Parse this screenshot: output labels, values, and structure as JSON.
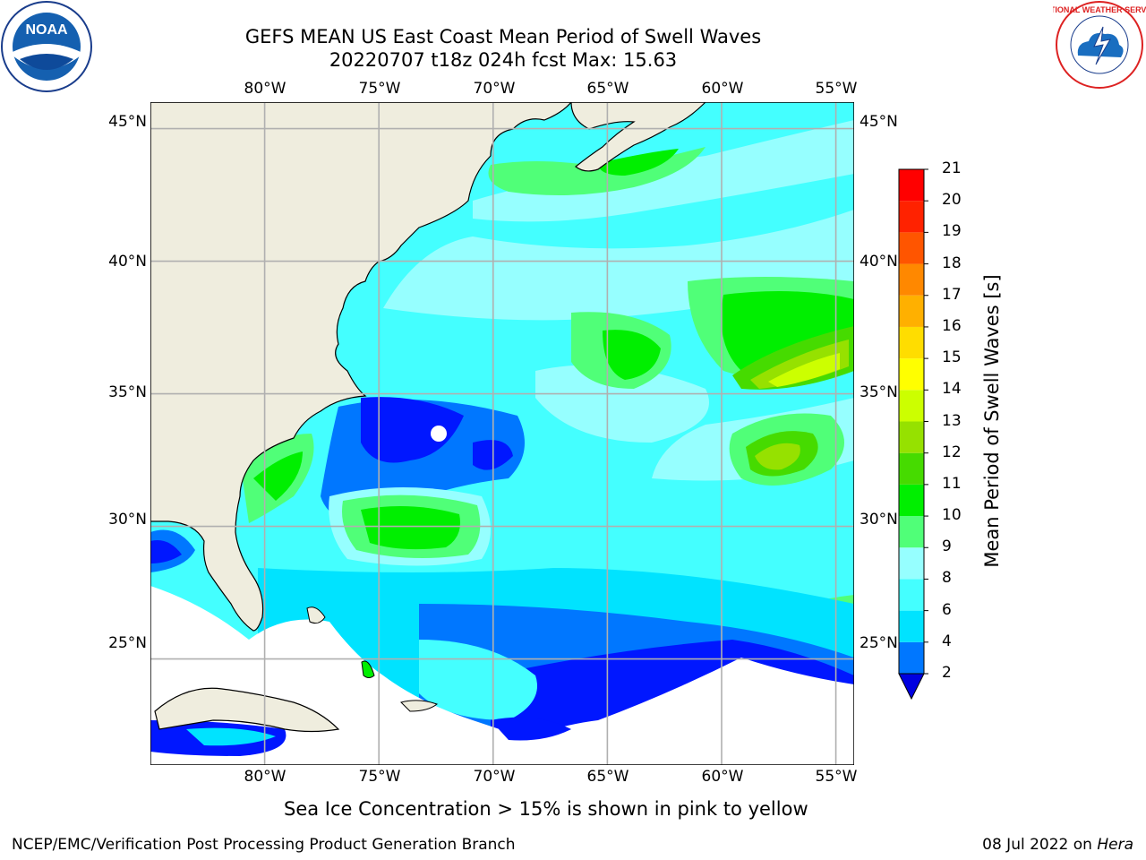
{
  "header": {
    "title_line1": "GEFS MEAN US East Coast Mean Period of Swell Waves",
    "title_line2": "20220707 t18z 024h fcst   Max: 15.63"
  },
  "logos": {
    "left": "noara-logo",
    "left_text": "NOAA",
    "right": "national-weather-service-logo",
    "right_text": "NATIONAL WEATHER SERVICE"
  },
  "map": {
    "lon_labels": [
      "80°W",
      "75°W",
      "70°W",
      "65°W",
      "60°W",
      "55°W"
    ],
    "lat_labels": [
      "45°N",
      "40°N",
      "35°N",
      "30°N",
      "25°N"
    ],
    "lon_values": [
      -80,
      -75,
      -70,
      -65,
      -60,
      -55
    ],
    "lat_values": [
      45,
      40,
      35,
      30,
      25
    ],
    "extent": {
      "lon_min": -85,
      "lon_max": -54.2,
      "lat_min": 21,
      "lat_max": 46
    },
    "land_color": "#efedde",
    "no_data_color": "#ffffff"
  },
  "colorbar": {
    "label": "Mean Period of Swell Waves [s]",
    "ticks": [
      "2",
      "4",
      "6",
      "8",
      "9",
      "10",
      "11",
      "12",
      "13",
      "14",
      "15",
      "16",
      "17",
      "18",
      "19",
      "20",
      "21"
    ],
    "colors": [
      "#0017ff",
      "#0077ff",
      "#00e3ff",
      "#44ffff",
      "#96ffff",
      "#50ff78",
      "#00ef00",
      "#46db00",
      "#96e100",
      "#ccff00",
      "#ffff00",
      "#ffdd00",
      "#ffb000",
      "#ff8800",
      "#ff5500",
      "#ff2200",
      "#ff0000"
    ],
    "extend_color": "#0000e0"
  },
  "caption": "Sea Ice Concentration > 15% is shown in pink to yellow",
  "footer": {
    "left": "NCEP/EMC/Verification Post Processing Product Generation Branch",
    "right_date": "08 Jul 2022 on ",
    "right_host": "Hera"
  }
}
